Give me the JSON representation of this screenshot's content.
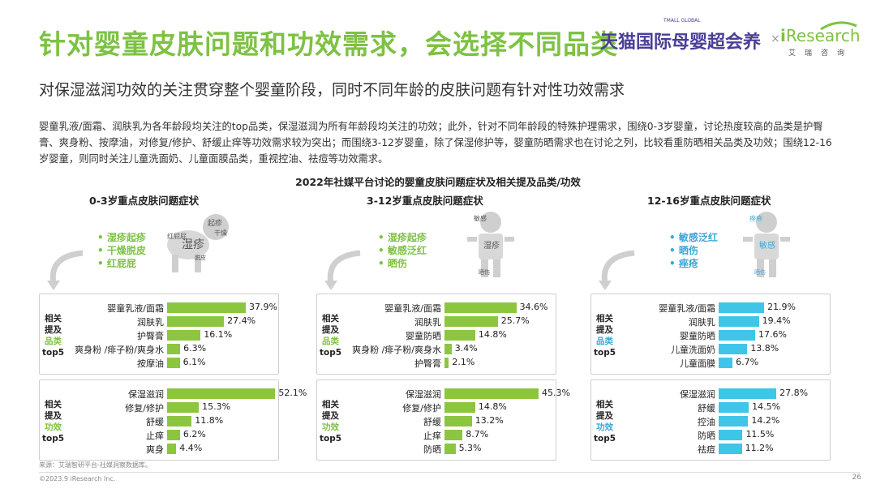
{
  "title": "针对婴童皮肤问题和功效需求，会选择不同品类",
  "logos": {
    "tmall": "天猫国际母婴超会养",
    "tmall_global": "TMALL GLOBAL",
    "separator": "×",
    "ir_i": "i",
    "ir_rest": "Research",
    "ir_sub": "艾瑞咨询"
  },
  "subtitle": "对保湿滋润功效的关注贯穿整个婴童阶段，同时不同年龄的皮肤问题有针对性功效需求",
  "intro": "婴童乳液/面霜、润肤乳为各年龄段均关注的top品类，保湿滋润为所有年龄段均关注的功效；此外，针对不同年龄段的特殊护理需求，围绕0-3岁婴童，讨论热度较高的品类是护臀膏、爽身粉、按摩油，对修复/修护、舒缓止痒等功效需求较为突出；而围绕3-12岁婴童，除了保湿修护等，婴童防晒需求也在讨论之列，比较看重防晒相关品类及功效；围绕12-16岁婴童，则同时关注儿童洗面奶、儿童面膜品类，重视控油、祛痘等功效需求。",
  "chart_title": "2022年社媒平台讨论的婴童皮肤问题症状及相关提及品类/功效",
  "side_labels": {
    "line1": "相关",
    "line2": "提及",
    "cat": "品类",
    "eff": "功效",
    "top": "top5"
  },
  "groups": [
    {
      "title": "0-3岁重点皮肤问题症状",
      "color": "#8cc63f",
      "symptoms": [
        "湿疹起疹",
        "干燥脱皮",
        "红屁屁"
      ],
      "cloud": [
        "湿疹",
        "起疹",
        "干燥",
        "红屁屁",
        "脱皮"
      ],
      "categories": {
        "labels": [
          "婴童乳液/面霜",
          "润肤乳",
          "护臀膏",
          "爽身粉 /痱子粉/爽身水",
          "按摩油"
        ],
        "values": [
          37.9,
          27.4,
          16.1,
          6.3,
          6.1
        ],
        "display": [
          "37.9%",
          "27.4%",
          "16.1%",
          "6.3%",
          "6.1%"
        ]
      },
      "effects": {
        "labels": [
          "保湿滋润",
          "修复/修护",
          "舒缓",
          "止痒",
          "爽身"
        ],
        "values": [
          52.1,
          15.3,
          11.8,
          6.2,
          4.4
        ],
        "display": [
          "52.1%",
          "15.3%",
          "11.8%",
          "6.2%",
          "4.4%"
        ]
      }
    },
    {
      "title": "3-12岁重点皮肤问题症状",
      "color": "#8cc63f",
      "symptoms": [
        "湿疹起疹",
        "敏感泛红",
        "晒伤"
      ],
      "cloud": [
        "敏感",
        "湿疹",
        "晒伤"
      ],
      "categories": {
        "labels": [
          "婴童乳液/面霜",
          "润肤乳",
          "婴童防晒",
          "爽身粉 /痱子粉/爽身水",
          "护臀膏"
        ],
        "values": [
          34.6,
          25.7,
          14.8,
          3.4,
          2.1
        ],
        "display": [
          "34.6%",
          "25.7%",
          "14.8%",
          "3.4%",
          "2.1%"
        ]
      },
      "effects": {
        "labels": [
          "保湿滋润",
          "修复/修护",
          "舒缓",
          "止痒",
          "防晒"
        ],
        "values": [
          45.3,
          14.8,
          13.2,
          8.7,
          5.3
        ],
        "display": [
          "45.3%",
          "14.8%",
          "13.2%",
          "8.7%",
          "5.3%"
        ]
      }
    },
    {
      "title": "12-16岁重点皮肤问题症状",
      "color": "#3ec5e8",
      "symptoms": [
        "敏感泛红",
        "晒伤",
        "痤疮"
      ],
      "cloud": [
        "痤疮",
        "敏感",
        "晒伤"
      ],
      "categories": {
        "labels": [
          "婴童乳液/面霜",
          "润肤乳",
          "婴童防晒",
          "儿童洗面奶",
          "儿童面膜"
        ],
        "values": [
          21.9,
          19.4,
          17.6,
          13.8,
          6.7
        ],
        "display": [
          "21.9%",
          "19.4%",
          "17.6%",
          "13.8%",
          "6.7%"
        ]
      },
      "effects": {
        "labels": [
          "保湿滋润",
          "舒缓",
          "控油",
          "防晒",
          "祛痘"
        ],
        "values": [
          27.8,
          14.5,
          14.2,
          11.5,
          11.2
        ],
        "display": [
          "27.8%",
          "14.5%",
          "14.2%",
          "11.5%",
          "11.2%"
        ]
      }
    }
  ],
  "chart_data": [
    {
      "type": "bar",
      "title": "0-3岁 相关提及品类top5",
      "categories": [
        "婴童乳液/面霜",
        "润肤乳",
        "护臀膏",
        "爽身粉 /痱子粉/爽身水",
        "按摩油"
      ],
      "values": [
        37.9,
        27.4,
        16.1,
        6.3,
        6.1
      ]
    },
    {
      "type": "bar",
      "title": "0-3岁 相关提及功效top5",
      "categories": [
        "保湿滋润",
        "修复/修护",
        "舒缓",
        "止痒",
        "爽身"
      ],
      "values": [
        52.1,
        15.3,
        11.8,
        6.2,
        4.4
      ]
    },
    {
      "type": "bar",
      "title": "3-12岁 相关提及品类top5",
      "categories": [
        "婴童乳液/面霜",
        "润肤乳",
        "婴童防晒",
        "爽身粉 /痱子粉/爽身水",
        "护臀膏"
      ],
      "values": [
        34.6,
        25.7,
        14.8,
        3.4,
        2.1
      ]
    },
    {
      "type": "bar",
      "title": "3-12岁 相关提及功效top5",
      "categories": [
        "保湿滋润",
        "修复/修护",
        "舒缓",
        "止痒",
        "防晒"
      ],
      "values": [
        45.3,
        14.8,
        13.2,
        8.7,
        5.3
      ]
    },
    {
      "type": "bar",
      "title": "12-16岁 相关提及品类top5",
      "categories": [
        "婴童乳液/面霜",
        "润肤乳",
        "婴童防晒",
        "儿童洗面奶",
        "儿童面膜"
      ],
      "values": [
        21.9,
        19.4,
        17.6,
        13.8,
        6.7
      ]
    },
    {
      "type": "bar",
      "title": "12-16岁 相关提及功效top5",
      "categories": [
        "保湿滋润",
        "舒缓",
        "控油",
        "防晒",
        "祛痘"
      ],
      "values": [
        27.8,
        14.5,
        14.2,
        11.5,
        11.2
      ]
    }
  ],
  "footer": {
    "source": "来源：艾瑞智研平台-社媒洞察数据库。",
    "copyright": "©2023.9 iResearch Inc.",
    "page": "26"
  }
}
